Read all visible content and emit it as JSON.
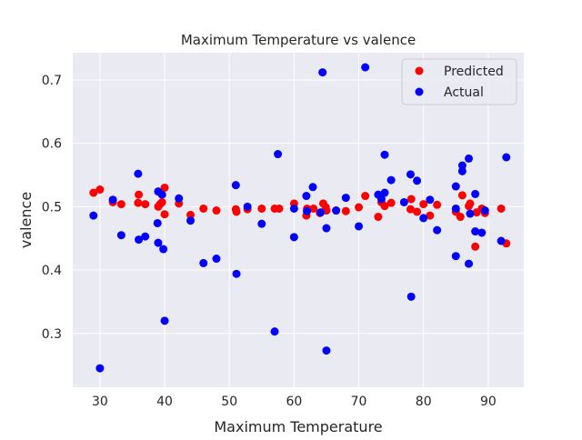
{
  "chart_data": {
    "type": "scatter",
    "title": "Maximum Temperature vs valence",
    "xlabel": "Maximum Temperature",
    "ylabel": "valence",
    "xlim": [
      25.8,
      95.5
    ],
    "ylim": [
      0.215,
      0.743
    ],
    "xticks": [
      30,
      40,
      50,
      60,
      70,
      80,
      90
    ],
    "yticks": [
      0.3,
      0.4,
      0.5,
      0.6,
      0.7
    ],
    "grid": true,
    "legend_position": "top-right",
    "colors": {
      "background": "#eaeaf2",
      "grid": "#ffffff",
      "Predicted": "#ff0000",
      "Actual": "#0000ff"
    },
    "series": [
      {
        "name": "Predicted",
        "color": "#ff0000",
        "points": [
          [
            29.0,
            0.522
          ],
          [
            30.0,
            0.527
          ],
          [
            32.0,
            0.507
          ],
          [
            33.3,
            0.504
          ],
          [
            35.9,
            0.506
          ],
          [
            36.0,
            0.519
          ],
          [
            37.0,
            0.504
          ],
          [
            39.0,
            0.5
          ],
          [
            39.3,
            0.504
          ],
          [
            39.6,
            0.507
          ],
          [
            40.0,
            0.53
          ],
          [
            40.0,
            0.488
          ],
          [
            42.2,
            0.505
          ],
          [
            44.0,
            0.487
          ],
          [
            46.0,
            0.497
          ],
          [
            48.0,
            0.494
          ],
          [
            51.0,
            0.496
          ],
          [
            51.1,
            0.492
          ],
          [
            52.8,
            0.496
          ],
          [
            55.0,
            0.497
          ],
          [
            57.0,
            0.497
          ],
          [
            57.7,
            0.497
          ],
          [
            60.0,
            0.505
          ],
          [
            61.9,
            0.486
          ],
          [
            62.0,
            0.497
          ],
          [
            63.0,
            0.497
          ],
          [
            64.0,
            0.49
          ],
          [
            64.5,
            0.505
          ],
          [
            64.9,
            0.499
          ],
          [
            65.0,
            0.494
          ],
          [
            66.5,
            0.494
          ],
          [
            68.0,
            0.493
          ],
          [
            70.0,
            0.499
          ],
          [
            71.0,
            0.517
          ],
          [
            73.0,
            0.484
          ],
          [
            73.5,
            0.507
          ],
          [
            74.0,
            0.501
          ],
          [
            75.0,
            0.506
          ],
          [
            78.0,
            0.496
          ],
          [
            78.1,
            0.512
          ],
          [
            79.0,
            0.492
          ],
          [
            80.0,
            0.504
          ],
          [
            81.0,
            0.486
          ],
          [
            82.1,
            0.503
          ],
          [
            85.0,
            0.492
          ],
          [
            85.7,
            0.484
          ],
          [
            86.0,
            0.518
          ],
          [
            87.0,
            0.501
          ],
          [
            87.2,
            0.505
          ],
          [
            88.0,
            0.437
          ],
          [
            88.2,
            0.491
          ],
          [
            89.0,
            0.497
          ],
          [
            89.5,
            0.49
          ],
          [
            92.0,
            0.497
          ],
          [
            92.8,
            0.442
          ]
        ]
      },
      {
        "name": "Actual",
        "color": "#0000ff",
        "points": [
          [
            29.0,
            0.486
          ],
          [
            30.0,
            0.245
          ],
          [
            32.0,
            0.511
          ],
          [
            33.3,
            0.455
          ],
          [
            35.9,
            0.552
          ],
          [
            36.0,
            0.448
          ],
          [
            37.0,
            0.453
          ],
          [
            38.9,
            0.474
          ],
          [
            39.0,
            0.524
          ],
          [
            39.0,
            0.443
          ],
          [
            39.6,
            0.519
          ],
          [
            39.8,
            0.433
          ],
          [
            40.0,
            0.32
          ],
          [
            42.2,
            0.513
          ],
          [
            44.0,
            0.478
          ],
          [
            46.0,
            0.411
          ],
          [
            48.0,
            0.418
          ],
          [
            51.0,
            0.534
          ],
          [
            51.1,
            0.394
          ],
          [
            52.8,
            0.5
          ],
          [
            55.0,
            0.473
          ],
          [
            57.0,
            0.303
          ],
          [
            57.5,
            0.583
          ],
          [
            60.0,
            0.452
          ],
          [
            60.0,
            0.497
          ],
          [
            61.9,
            0.517
          ],
          [
            62.0,
            0.493
          ],
          [
            62.9,
            0.531
          ],
          [
            64.1,
            0.491
          ],
          [
            64.4,
            0.712
          ],
          [
            65.0,
            0.466
          ],
          [
            65.0,
            0.273
          ],
          [
            66.5,
            0.494
          ],
          [
            68.0,
            0.514
          ],
          [
            70.0,
            0.469
          ],
          [
            71.0,
            0.72
          ],
          [
            73.0,
            0.519
          ],
          [
            73.5,
            0.512
          ],
          [
            74.0,
            0.522
          ],
          [
            74.0,
            0.582
          ],
          [
            75.0,
            0.542
          ],
          [
            77.0,
            0.507
          ],
          [
            78.0,
            0.551
          ],
          [
            78.1,
            0.358
          ],
          [
            79.0,
            0.541
          ],
          [
            80.0,
            0.482
          ],
          [
            81.0,
            0.511
          ],
          [
            82.1,
            0.463
          ],
          [
            85.0,
            0.422
          ],
          [
            85.0,
            0.532
          ],
          [
            85.0,
            0.497
          ],
          [
            86.0,
            0.565
          ],
          [
            86.0,
            0.556
          ],
          [
            87.0,
            0.576
          ],
          [
            87.0,
            0.41
          ],
          [
            87.2,
            0.489
          ],
          [
            88.0,
            0.52
          ],
          [
            88.0,
            0.461
          ],
          [
            89.0,
            0.459
          ],
          [
            89.5,
            0.494
          ],
          [
            92.0,
            0.446
          ],
          [
            92.8,
            0.578
          ]
        ]
      }
    ]
  }
}
